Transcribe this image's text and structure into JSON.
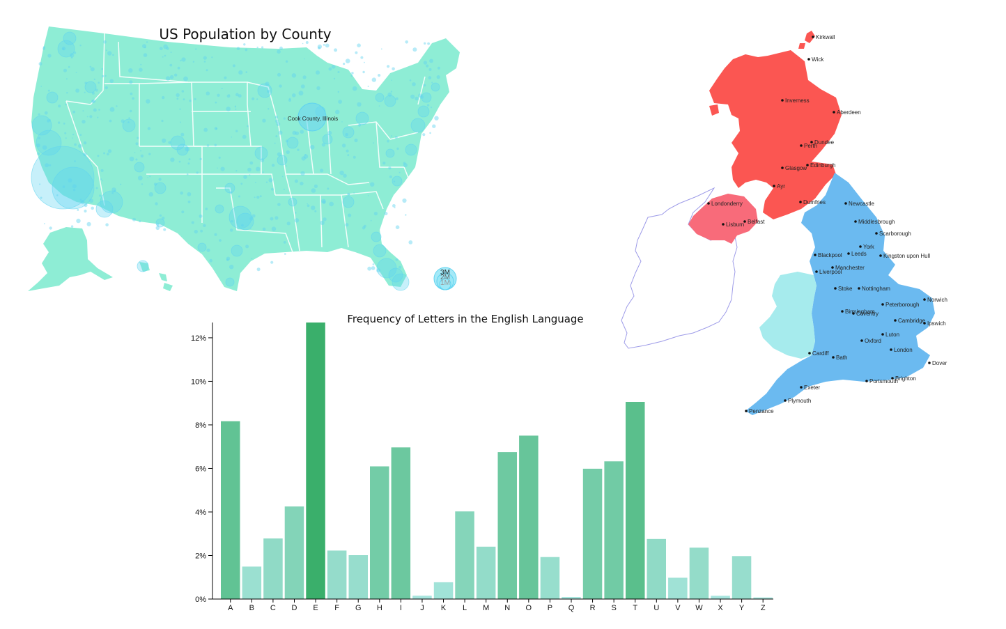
{
  "us_map": {
    "title": "US Population by County",
    "annotation": "Cook County, Illinois",
    "legend_labels": [
      "3M",
      "2M",
      "1M"
    ],
    "colors": {
      "land": "#8eedd5",
      "bubble": "#5fd3f0",
      "border": "#ffffff"
    }
  },
  "uk_map": {
    "colors": {
      "scotland": "#fb5652",
      "northern_ireland": "#f86b7a",
      "england": "#6bbaf0",
      "wales": "#a6ebed",
      "ireland_outline": "#9d9be8"
    },
    "cities": [
      {
        "name": "Kirkwall"
      },
      {
        "name": "Wick"
      },
      {
        "name": "Inverness"
      },
      {
        "name": "Aberdeen"
      },
      {
        "name": "Dundee"
      },
      {
        "name": "Perth"
      },
      {
        "name": "Edinburgh"
      },
      {
        "name": "Glasgow"
      },
      {
        "name": "Ayr"
      },
      {
        "name": "Dumfries"
      },
      {
        "name": "Londonderry"
      },
      {
        "name": "Lisburn"
      },
      {
        "name": "Belfast"
      },
      {
        "name": "Newcastle"
      },
      {
        "name": "Middlesbrough"
      },
      {
        "name": "Scarborough"
      },
      {
        "name": "Blackpool"
      },
      {
        "name": "Leeds"
      },
      {
        "name": "York"
      },
      {
        "name": "Kingston upon Hull"
      },
      {
        "name": "Manchester"
      },
      {
        "name": "Liverpool"
      },
      {
        "name": "Stoke"
      },
      {
        "name": "Nottingham"
      },
      {
        "name": "Norwich"
      },
      {
        "name": "Birmingham"
      },
      {
        "name": "Coventry"
      },
      {
        "name": "Peterborough"
      },
      {
        "name": "Cambridge"
      },
      {
        "name": "Ipswich"
      },
      {
        "name": "Luton"
      },
      {
        "name": "Oxford"
      },
      {
        "name": "London"
      },
      {
        "name": "Cardiff"
      },
      {
        "name": "Bath"
      },
      {
        "name": "Dover"
      },
      {
        "name": "Brighton"
      },
      {
        "name": "Portsmouth"
      },
      {
        "name": "Exeter"
      },
      {
        "name": "Plymouth"
      },
      {
        "name": "Penzance"
      }
    ]
  },
  "chart_data": {
    "type": "bar",
    "title": "Frequency of Letters in the English Language",
    "xlabel": "",
    "ylabel": "",
    "categories": [
      "A",
      "B",
      "C",
      "D",
      "E",
      "F",
      "G",
      "H",
      "I",
      "J",
      "K",
      "L",
      "M",
      "N",
      "O",
      "P",
      "Q",
      "R",
      "S",
      "T",
      "U",
      "V",
      "W",
      "X",
      "Y",
      "Z"
    ],
    "values": [
      8.167,
      1.492,
      2.782,
      4.253,
      12.702,
      2.228,
      2.015,
      6.094,
      6.966,
      0.153,
      0.772,
      4.025,
      2.406,
      6.749,
      7.507,
      1.929,
      0.095,
      5.987,
      6.327,
      9.056,
      2.758,
      0.978,
      2.36,
      0.15,
      1.974,
      0.074
    ],
    "ylim": [
      0,
      12.702
    ],
    "yticks": [
      "0%",
      "2%",
      "4%",
      "6%",
      "8%",
      "10%",
      "12%"
    ],
    "grid": false,
    "color_low": "#a8e6df",
    "color_high": "#3aaf6b"
  }
}
